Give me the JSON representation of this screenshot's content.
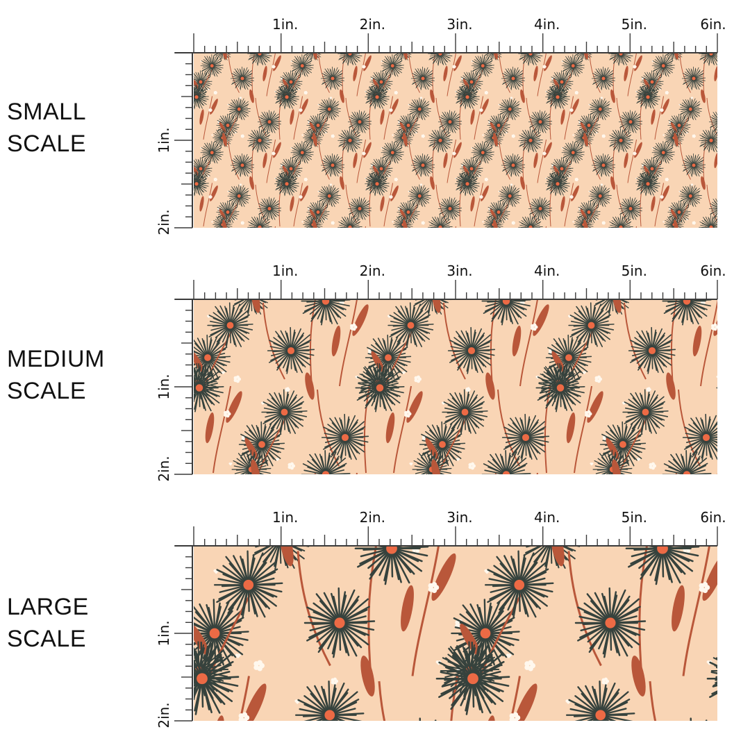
{
  "colors": {
    "background": "#f9d5b5",
    "flower": "#36423d",
    "center": "#ec6a45",
    "stem": "#b9573a",
    "accent_white": "#fff8ee",
    "ruler": "#3a3a3a"
  },
  "icons": [
    "dandelion-flower-icon",
    "leaf-stem-icon",
    "small-white-flower-icon",
    "heart-icon"
  ],
  "ruler": {
    "top_labels": [
      "1in.",
      "2in.",
      "3in.",
      "4in.",
      "5in.",
      "6in."
    ],
    "side_labels": [
      "1in.",
      "2in."
    ]
  },
  "scales": [
    {
      "label_line1": "SMALL",
      "label_line2": "SCALE"
    },
    {
      "label_line1": "MEDIUM",
      "label_line2": "SCALE"
    },
    {
      "label_line1": "LARGE",
      "label_line2": "SCALE"
    }
  ]
}
